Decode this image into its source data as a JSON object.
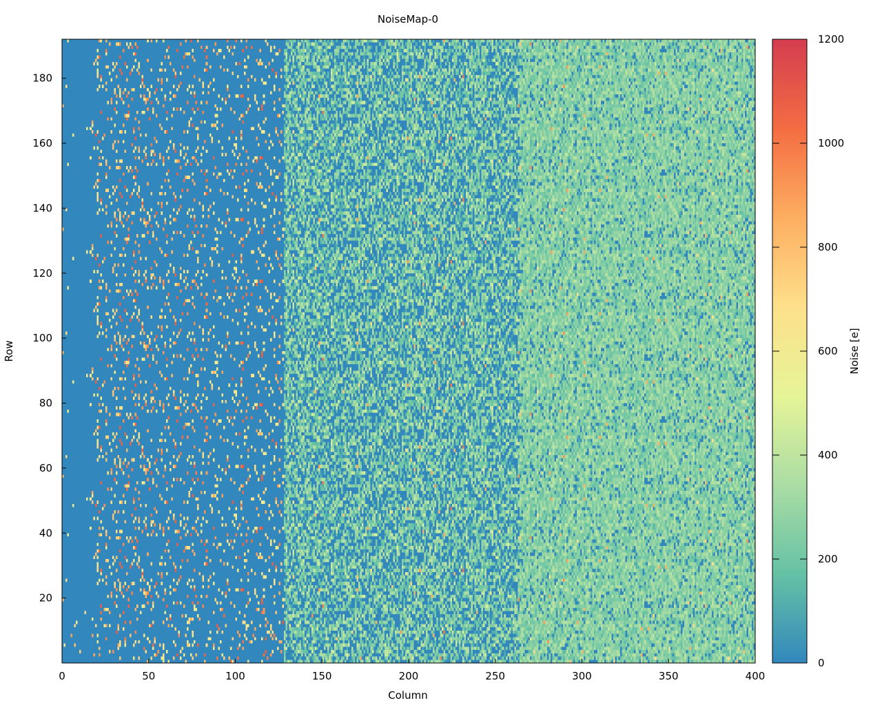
{
  "chart_data": {
    "type": "heatmap",
    "title": "NoiseMap-0",
    "xlabel": "Column",
    "ylabel": "Row",
    "colorbar_label": "Noise [e]",
    "xlim": [
      0,
      400
    ],
    "ylim": [
      0,
      192
    ],
    "clim": [
      0,
      1200
    ],
    "xticks": [
      0,
      50,
      100,
      150,
      200,
      250,
      300,
      350,
      400
    ],
    "yticks": [
      20,
      40,
      60,
      80,
      100,
      120,
      140,
      160,
      180
    ],
    "cticks": [
      0,
      200,
      400,
      600,
      800,
      1000,
      1200
    ],
    "grid": false,
    "colormap": [
      "#3288bd",
      "#66c2a5",
      "#abdda4",
      "#e6f598",
      "#fee08b",
      "#fdae61",
      "#f46d43",
      "#d53e4f"
    ],
    "regions": [
      {
        "columns": [
          0,
          16
        ],
        "typical_noise": 0,
        "sparse_hits_fraction": 0.01,
        "hit_range": [
          600,
          900
        ]
      },
      {
        "columns": [
          16,
          128
        ],
        "typical_noise": 0,
        "sparse_hits_fraction": 0.1,
        "hit_range": [
          600,
          1100
        ]
      },
      {
        "columns": [
          128,
          264
        ],
        "typical_noise_range": [
          0,
          450
        ],
        "zero_fraction": 0.35
      },
      {
        "columns": [
          264,
          400
        ],
        "typical_noise_range": [
          100,
          400
        ],
        "zero_fraction": 0.12
      }
    ]
  }
}
